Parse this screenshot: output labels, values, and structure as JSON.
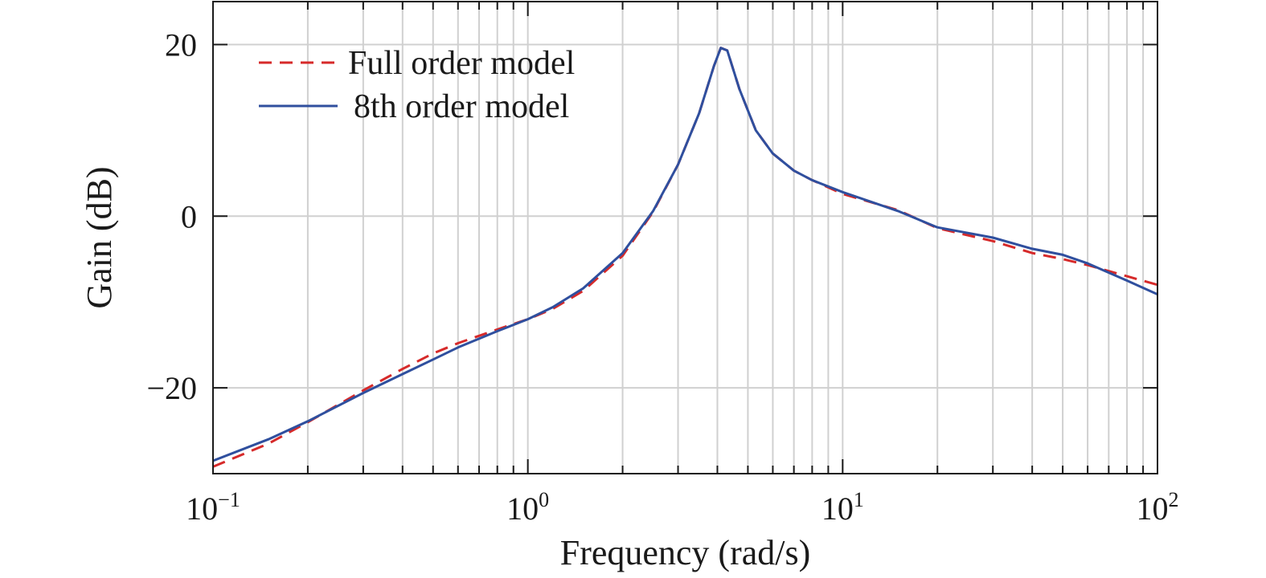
{
  "chart_data": {
    "type": "line",
    "xscale": "log",
    "xlabel": "Frequency (rad/s)",
    "ylabel": "Gain (dB)",
    "xlim": [
      0.1,
      100
    ],
    "ylim": [
      -30,
      25
    ],
    "grid": true,
    "legend_position": "top-left",
    "x_ticks": [
      {
        "value": 0.1,
        "base": "10",
        "exp": "−1"
      },
      {
        "value": 1,
        "base": "10",
        "exp": "0"
      },
      {
        "value": 10,
        "base": "10",
        "exp": "1"
      },
      {
        "value": 100,
        "base": "10",
        "exp": "2"
      }
    ],
    "y_ticks": [
      {
        "value": 20,
        "label": "20"
      },
      {
        "value": 0,
        "label": "0"
      },
      {
        "value": -20,
        "label": "−20"
      }
    ],
    "series": [
      {
        "name": "Full order model",
        "color": "#d62a2a",
        "style": "dashed",
        "x": [
          0.1,
          0.15,
          0.2,
          0.3,
          0.4,
          0.5,
          0.6,
          0.8,
          1.0,
          1.2,
          1.5,
          2.0,
          2.5,
          3.0,
          3.5,
          3.9,
          4.1,
          4.3,
          4.7,
          5.3,
          6.0,
          7.0,
          8.0,
          10,
          15,
          20,
          30,
          40,
          50,
          60,
          80,
          100
        ],
        "y": [
          -29.2,
          -26.5,
          -24.0,
          -20.3,
          -17.8,
          -16.0,
          -14.8,
          -13.2,
          -12.0,
          -10.8,
          -8.7,
          -4.6,
          0.5,
          6.0,
          12.0,
          17.5,
          19.6,
          19.3,
          14.8,
          10.0,
          7.3,
          5.3,
          4.2,
          2.6,
          0.7,
          -1.4,
          -2.9,
          -4.3,
          -5.0,
          -5.7,
          -7.0,
          -8.0
        ]
      },
      {
        "name": "8th order model",
        "color": "#2f4f9e",
        "style": "solid",
        "x": [
          0.1,
          0.15,
          0.2,
          0.3,
          0.4,
          0.5,
          0.6,
          0.8,
          1.0,
          1.2,
          1.5,
          2.0,
          2.5,
          3.0,
          3.5,
          3.9,
          4.1,
          4.3,
          4.7,
          5.3,
          6.0,
          7.0,
          8.0,
          10,
          15,
          20,
          30,
          40,
          50,
          60,
          80,
          100
        ],
        "y": [
          -28.5,
          -26.0,
          -23.9,
          -20.6,
          -18.4,
          -16.7,
          -15.3,
          -13.4,
          -12.0,
          -10.6,
          -8.4,
          -4.3,
          0.6,
          6.0,
          12.0,
          17.5,
          19.6,
          19.3,
          14.8,
          10.0,
          7.3,
          5.3,
          4.2,
          2.8,
          0.6,
          -1.3,
          -2.5,
          -3.8,
          -4.5,
          -5.5,
          -7.5,
          -9.1
        ]
      }
    ]
  }
}
